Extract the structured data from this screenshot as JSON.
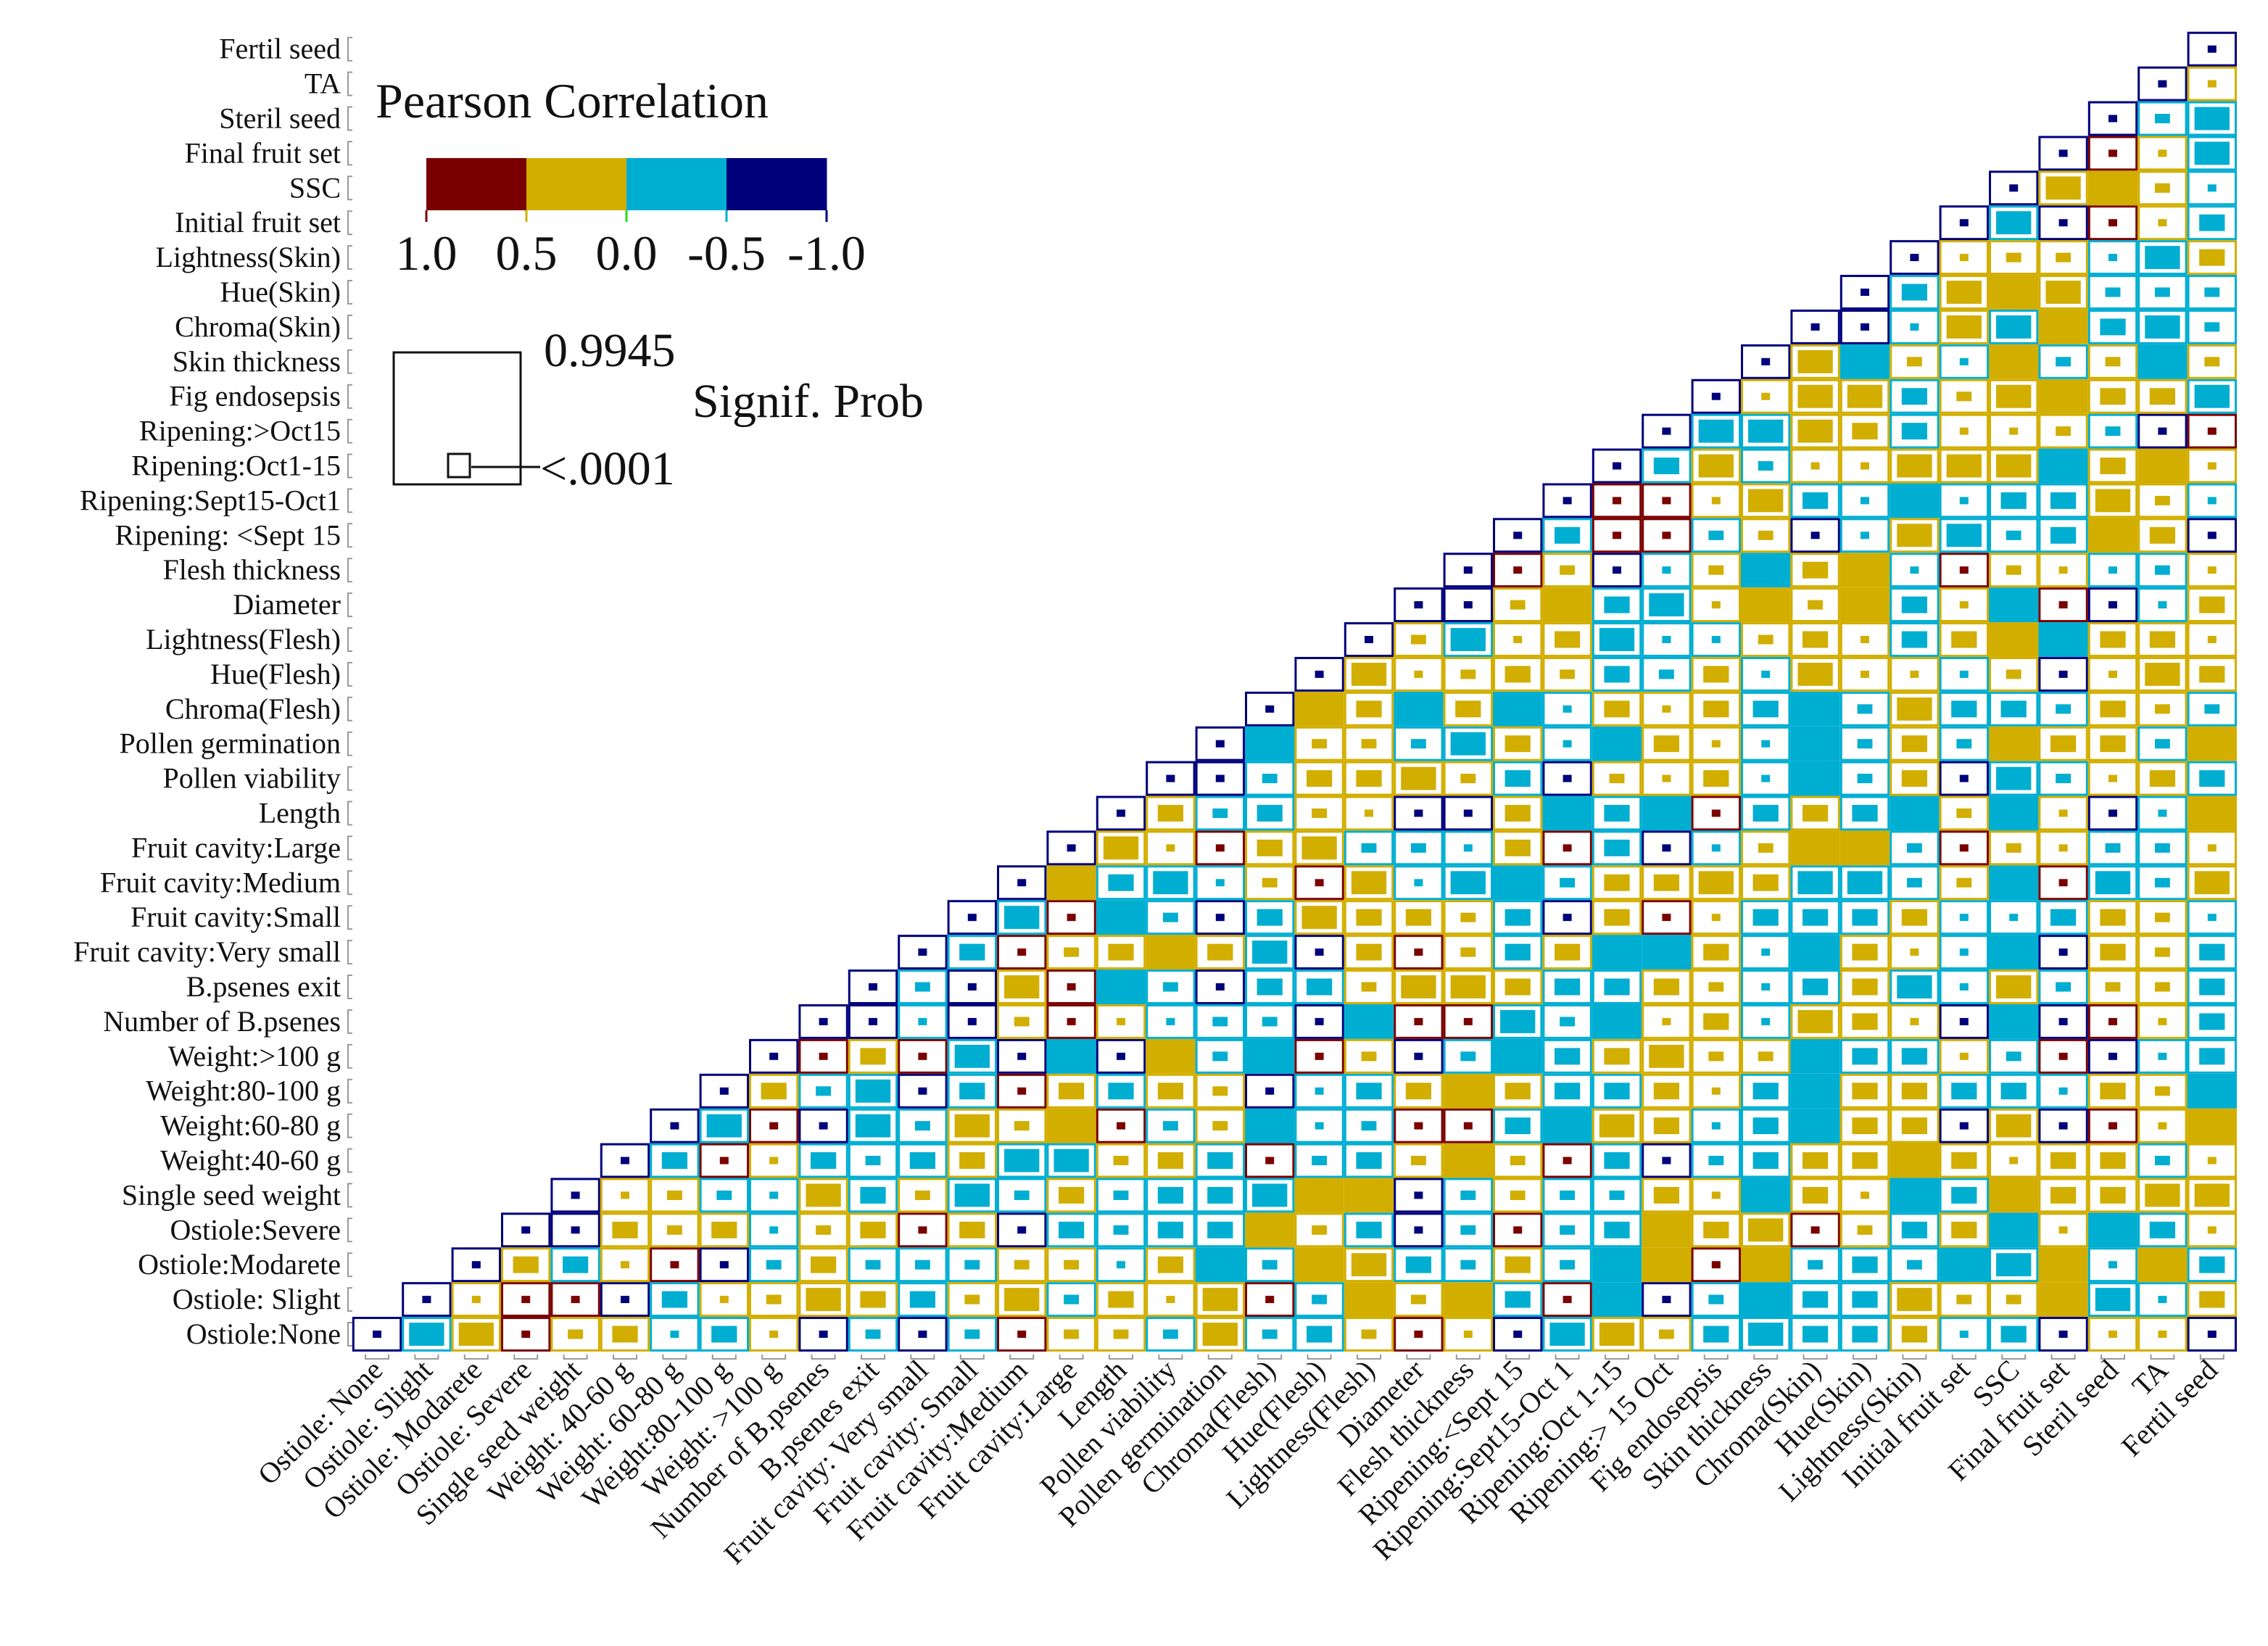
{
  "chart_data": {
    "type": "heatmap",
    "title": "Pearson Correlation",
    "legend": {
      "title": "Pearson Correlation",
      "ticks": [
        "1.0",
        "0.5",
        "0.0",
        "-0.5",
        "-1.0"
      ],
      "bins": [
        {
          "code": "r",
          "range": [
            0.5,
            1.0
          ],
          "color": "#7a0000"
        },
        {
          "code": "y",
          "range": [
            0.0,
            0.5
          ],
          "color": "#d2ae00"
        },
        {
          "code": "c",
          "range": [
            -0.5,
            0.0
          ],
          "color": "#00aed2"
        },
        {
          "code": "n",
          "range": [
            -1.0,
            -0.5
          ],
          "color": "#00007c"
        }
      ],
      "signif_title": "Signif. Prob",
      "signif_max_label": "0.9945",
      "signif_min_label": "<.0001"
    },
    "cell_encoding": "letter = correlation bin (r,y,c,n); digit 0-4 = relative Signif. Prob (0 = <.0001 smallest mark, 4 = largest / 0.9945)",
    "row_labels_top_to_bottom": [
      "Fertil seed",
      "TA",
      "Steril seed",
      "Final fruit set",
      "SSC",
      "Initial fruit set",
      "Lightness(Skin)",
      "Hue(Skin)",
      "Chroma(Skin)",
      "Skin thickness",
      "Fig endosepsis",
      "Ripening:>Oct15",
      "Ripening:Oct1-15",
      "Ripening:Sept15-Oct1",
      "Ripening: <Sept 15",
      "Flesh thickness",
      "Diameter",
      "Lightness(Flesh)",
      "Hue(Flesh)",
      "Chroma(Flesh)",
      "Pollen germination",
      "Pollen viability",
      "Length",
      "Fruit cavity:Large",
      "Fruit cavity:Medium",
      "Fruit cavity:Small",
      "Fruit cavity:Very small",
      "B.psenes exit",
      "Number of B.psenes",
      "Weight:>100 g",
      "Weight:80-100 g",
      "Weight:60-80 g",
      "Weight:40-60 g",
      "Single seed weight",
      "Ostiole:Severe",
      "Ostiole:Modarete",
      "Ostiole: Slight",
      "Ostiole:None"
    ],
    "column_labels": [
      "Ostiole: None",
      "Ostiole: Slight",
      "Ostiole: Modarete",
      "Ostiole: Severe",
      "Single seed weight",
      "Weight: 40-60 g",
      "Weight: 60-80 g",
      "Weight:80-100 g",
      "Weight: >100 g",
      "Number of B.psenes",
      "B.psenes exit",
      "Fruit cavity: Very small",
      "Fruit cavity: Small",
      "Fruit cavity:Medium",
      "Fruit cavity:Large",
      "Length",
      "Pollen viability",
      "Pollen germination",
      "Chroma(Flesh)",
      "Hue(Flesh)",
      "Lightness(Flesh)",
      "Diameter",
      "Flesh thickness",
      "Ripening:<Sept 15",
      "Ripening:Sept15-Oct 1",
      "Ripening:Oct 1-15",
      "Ripening:> 15 Oct",
      "Fig endosepsis",
      "Skin thickness",
      "Chroma(Skin)",
      "Hue(Skin)",
      "Lightness(Skin)",
      "Initial fruit set",
      "SSC",
      "Final fruit set",
      "Steril seed",
      "TA",
      "Fertil seed"
    ],
    "rows_bottom_to_top_from_diagonal": [
      "n0 c3 y3 r0 y1 y2 c0 c2 y0 n0 c1 n0 c1 r0 y1 y1 c1 y3 c1 c2 y1 r0 y0 n0 c3 y3 y1 c2 c3 c2 c2 y2 c0 c2 n0 y0 y0 n0",
      "n0 y0 r0 r0 n0 c2 y0 y1 y3 y2 c2 y1 y3 c1 y2 y0 y3 r0 c1 y4 y1 y4 c2 r0 c4 n0 c1 c4 c2 c2 y3 y1 y1 y4 c3 c0 y2",
      "n0 y2 c2 y0 r0 n0 c1 y2 c1 c1 c1 y1 y1 c0 y2 c4 c1 y4 y3 c2 c1 y2 c1 c4 y4 r0 y4 c1 c2 c1 c4 c3 y4 c0 y4 c2",
      "n0 n0 y2 y1 y2 c0 y1 y2 r0 y2 n0 c2 c1 c2 c2 y4 y1 c2 n0 c1 r0 c1 c2 y4 y2 y3 r0 y1 c2 y2 c4 y0 c4 c2 y0",
      "n0 y0 y1 c1 c0 y3 c2 y1 c3 c1 y2 c1 c2 c2 c3 y4 y4 n0 c1 y1 c1 c1 y2 y0 c4 y2 y0 c4 c2 y4 y2 y2 y3 y3",
      "n0 c2 r0 y0 c2 c1 c2 y2 c3 c3 y1 y2 c2 r0 c1 c2 y1 y4 y1 r0 c2 n0 c1 c2 y2 y2 y4 y2 y0 y2 y2 c1 y0",
      "n0 c3 r0 n0 c3 c1 y3 y1 y4 r0 c1 y1 c4 c0 c1 r0 r0 c2 c4 y3 y2 c0 c2 c4 y2 y2 n0 y3 n0 r0 y0 y4",
      "n0 y2 c1 c3 n0 c2 r0 y2 c2 y2 y1 n0 c0 c2 y2 y4 y2 c2 c2 y2 y0 c2 c4 y2 y2 c2 c2 c0 y2 y1 c4",
      "n0 r0 y2 r0 c3 n0 c4 n0 y4 c1 c4 r0 y1 n0 c1 c4 c2 y2 y3 y1 y1 c4 c2 c2 y0 c1 r0 n0 c0 c2",
      "n0 n0 c0 n0 y1 r0 y0 c0 c1 c1 n0 c4 r0 r0 c3 c1 c4 y0 y2 c0 y3 y2 y0 n0 c4 n0 r0 y0 c2",
      "n0 c1 n0 y3 r0 c4 c1 n0 c2 c2 y1 y3 y3 y2 c2 c2 y2 y1 c0 c2 y2 c3 c0 y3 c1 y1 y1 c2",
      "n0 c2 r0 y1 y2 y4 y2 c3 n0 y2 r0 y1 c2 y2 c4 c4 y2 c0 c4 y2 y0 c0 c4 n0 y2 y1 c2",
      "n0 c3 r0 c4 c1 n0 c2 y3 y2 y2 y1 c2 n0 y2 r0 y0 c2 c2 c2 y2 c0 c0 c2 y2 y1 c0",
      "n0 y4 c2 c3 c0 y1 r0 y3 c0 c3 c4 c1 y2 y2 y3 y2 c3 c3 c1 y1 c4 r0 c3 c1 y3",
      "n0 y3 y0 r0 y2 y3 c1 c1 c0 y2 r0 c2 n0 c0 y1 y4 y4 c1 r0 y1 y0 c1 c1 y0",
      "n0 y2 c1 c2 y1 y0 n0 n0 y2 c4 c2 c4 r0 c2 y2 c2 c4 y1 c4 y0 n0 c0 y4",
      "n0 n0 c1 y2 y2 y3 y1 c2 n0 y1 y0 y2 c0 c4 c1 y2 n0 c3 c1 y0 y2 c2",
      "n0 c4 y1 y1 c1 c3 y2 c0 c4 y2 y0 c0 c4 c1 y2 c1 y4 y2 y2 c1 y4",
      "n0 y4 y2 c4 y2 c4 c0 y2 y0 y2 c2 c4 c1 y3 c2 c2 c1 y2 y1 c1",
      "n0 y3 y0 y1 y2 y1 c2 c1 y2 c0 y3 y0 y0 c0 y1 n0 y0 y3 y2",
      "n0 y1 c3 y0 y2 c3 c0 c0 y1 y2 y0 c2 y2 y4 c4 y2 y2 y0",
      "n0 n0 y1 y4 c2 c3 y0 y4 y1 y4 c2 y0 c4 r0 n0 c0 y2",
      "n0 r0 y1 n0 c0 y1 c4 y2 y4 c0 r0 y1 y0 c0 c1 y0",
      "n0 c2 r0 r0 c1 y1 n0 c0 y3 c3 c1 c2 y4 y2 n0",
      "n0 r0 r0 y0 y3 c2 c0 c4 c0 c2 c2 y3 y1 c0",
      "n0 c2 y3 c1 y0 y0 y3 y3 y3 c4 y2 y4 y0",
      "n0 c3 c3 y3 y2 c2 y0 y0 y1 c1 n0 r0",
      "n0 y0 y3 y3 c2 y1 y3 y4 y2 y2 c3",
      "n0 y3 c4 y1 c0 y4 c1 y1 c4 y1",
      "n0 n0 c0 y3 c3 y4 c2 c3 c1",
      "n0 c2 y3 y4 y3 c1 c1 c1",
      "n0 y0 y1 y1 c0 c3 y2",
      "n0 c3 n0 r0 y0 c2",
      "n0 y3 y4 y1 c0",
      "n0 r0 y0 c3",
      "n0 c1 c3",
      "n0 y0",
      "n0"
    ]
  }
}
